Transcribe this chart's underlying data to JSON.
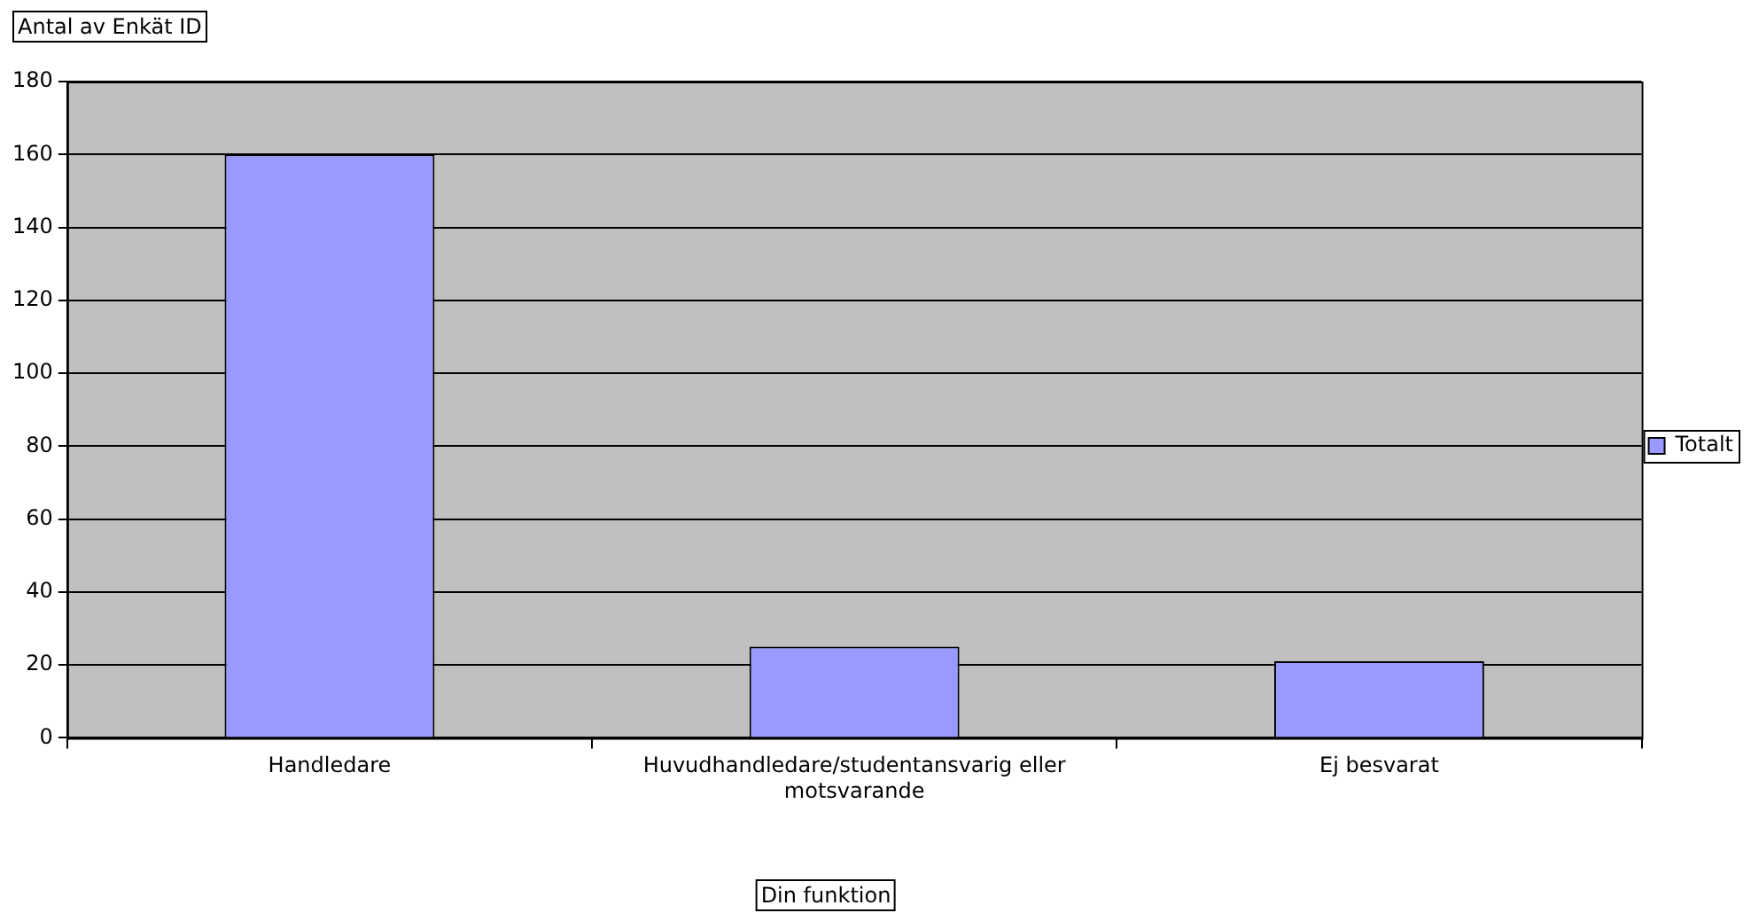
{
  "chart_data": {
    "type": "bar",
    "xlabel": "Din funktion",
    "ylabel": "Antal av Enkät ID",
    "categories": [
      "Handledare",
      "Huvudhandledare/studentansvarig eller motsvarande",
      "Ej besvarat"
    ],
    "series": [
      {
        "name": "Totalt",
        "color": "#9999ff",
        "values": [
          160,
          25,
          21
        ]
      }
    ],
    "ylim": [
      0,
      180
    ],
    "yticks": [
      0,
      20,
      40,
      60,
      80,
      100,
      120,
      140,
      160,
      180
    ],
    "grid": "y",
    "legend": "right"
  }
}
